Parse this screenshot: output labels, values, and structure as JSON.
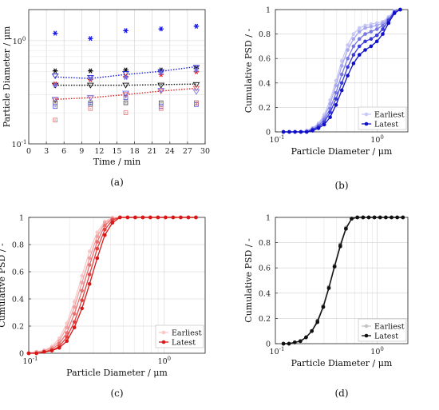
{
  "chart_data": [
    {
      "id": "a",
      "panel_label": "(a)",
      "type": "scatter",
      "xlabel": "Time  / min",
      "ylabel": "Particle Diameter  / μm",
      "xlim": [
        0,
        30
      ],
      "ylim": [
        0.1,
        2
      ],
      "yscale": "log",
      "grid": true,
      "xticks": [
        "0",
        "3",
        "6",
        "9",
        "12",
        "15",
        "18",
        "21",
        "24",
        "27",
        "30"
      ],
      "yticks": [
        "10-1",
        "100"
      ],
      "x": [
        4.5,
        10.5,
        16.5,
        22.5,
        28.5
      ],
      "series": [
        {
          "color": "#1515e0",
          "marker": "*",
          "values": [
            1.18,
            1.05,
            1.25,
            1.3,
            1.38
          ]
        },
        {
          "color": "#111111",
          "marker": "*",
          "values": [
            0.51,
            0.51,
            0.52,
            0.52,
            0.54
          ]
        },
        {
          "color": "#2a2ad0",
          "marker": "triangle-down",
          "values": [
            0.455,
            0.44,
            0.48,
            0.5,
            0.55
          ]
        },
        {
          "color": "#111111",
          "marker": "triangle-down",
          "values": [
            0.37,
            0.37,
            0.37,
            0.37,
            0.375
          ]
        },
        {
          "color": "#e02020",
          "marker": "*",
          "values": [
            0.38,
            0.42,
            0.45,
            0.47,
            0.5
          ]
        },
        {
          "color": "#7070e0",
          "marker": "*",
          "values": [
            0.37,
            0.43,
            0.44,
            0.49,
            0.52
          ]
        },
        {
          "color": "#e86060",
          "marker": "triangle-down",
          "values": [
            0.265,
            0.28,
            0.3,
            0.325,
            0.345
          ]
        },
        {
          "color": "#7a7af0",
          "marker": "triangle-down",
          "values": [
            0.27,
            0.28,
            0.31,
            0.33,
            0.32
          ]
        },
        {
          "color": "#444444",
          "marker": "square",
          "values": [
            0.25,
            0.25,
            0.25,
            0.25,
            0.25
          ]
        },
        {
          "color": "#4a4ad8",
          "marker": "square",
          "values": [
            0.23,
            0.24,
            0.28,
            0.23,
            0.24
          ]
        },
        {
          "color": "#e87070",
          "marker": "square",
          "values": [
            0.17,
            0.22,
            0.2,
            0.22,
            0.25
          ]
        }
      ],
      "fit_lines": [
        {
          "color": "#1a1ad8",
          "values": [
            0.445,
            0.43,
            0.47,
            0.505,
            0.56
          ]
        },
        {
          "color": "#111111",
          "values": [
            0.37,
            0.37,
            0.37,
            0.375,
            0.38
          ]
        },
        {
          "color": "#e02020",
          "values": [
            0.27,
            0.28,
            0.3,
            0.325,
            0.345
          ]
        }
      ]
    },
    {
      "id": "b",
      "panel_label": "(b)",
      "type": "line",
      "xlabel": "Particle Diameter  / μm",
      "ylabel": "Cumulative PSD  / -",
      "xscale": "log",
      "xlim": [
        0.1,
        2
      ],
      "ylim": [
        0,
        1
      ],
      "grid": true,
      "xticks": [
        "10-1",
        "100"
      ],
      "yticks": [
        "0",
        "0.2",
        "0.4",
        "0.6",
        "0.8",
        "1"
      ],
      "legend": {
        "position": "bottom-right",
        "entries": [
          "Earliest",
          "Latest"
        ]
      },
      "x": [
        0.12,
        0.137,
        0.156,
        0.178,
        0.203,
        0.232,
        0.265,
        0.302,
        0.345,
        0.394,
        0.449,
        0.513,
        0.585,
        0.668,
        0.762,
        0.87,
        0.993,
        1.133,
        1.293,
        1.476,
        1.684
      ],
      "series": [
        {
          "color": "#c8c8f4",
          "values": [
            0,
            0,
            0,
            0,
            0.01,
            0.03,
            0.07,
            0.14,
            0.26,
            0.42,
            0.58,
            0.71,
            0.8,
            0.85,
            0.87,
            0.88,
            0.89,
            0.9,
            0.94,
            0.99,
            1
          ]
        },
        {
          "color": "#a8a8f0",
          "values": [
            0,
            0,
            0,
            0,
            0.01,
            0.03,
            0.06,
            0.12,
            0.23,
            0.38,
            0.54,
            0.67,
            0.76,
            0.82,
            0.85,
            0.86,
            0.87,
            0.89,
            0.93,
            0.98,
            1
          ]
        },
        {
          "color": "#7878e4",
          "values": [
            0,
            0,
            0,
            0,
            0,
            0.02,
            0.05,
            0.1,
            0.19,
            0.32,
            0.47,
            0.6,
            0.7,
            0.76,
            0.8,
            0.82,
            0.84,
            0.87,
            0.92,
            0.98,
            1
          ]
        },
        {
          "color": "#3a3ad8",
          "values": [
            0,
            0,
            0,
            0,
            0,
            0.02,
            0.04,
            0.08,
            0.16,
            0.27,
            0.4,
            0.53,
            0.63,
            0.7,
            0.74,
            0.76,
            0.79,
            0.84,
            0.91,
            0.98,
            1
          ]
        },
        {
          "color": "#1010c8",
          "values": [
            0,
            0,
            0,
            0,
            0,
            0.01,
            0.03,
            0.06,
            0.12,
            0.22,
            0.34,
            0.46,
            0.56,
            0.63,
            0.67,
            0.7,
            0.74,
            0.8,
            0.89,
            0.97,
            1
          ]
        }
      ]
    },
    {
      "id": "c",
      "panel_label": "(c)",
      "type": "line",
      "xlabel": "Particle Diameter  / μm",
      "ylabel": "Cumulative PSD  / -",
      "xscale": "log",
      "xlim": [
        0.1,
        2
      ],
      "ylim": [
        0,
        1
      ],
      "grid": true,
      "xticks": [
        "10-1",
        "100"
      ],
      "yticks": [
        "0",
        "0.2",
        "0.4",
        "0.6",
        "0.8",
        "1"
      ],
      "legend": {
        "position": "bottom-right",
        "entries": [
          "Earliest",
          "Latest"
        ]
      },
      "x": [
        0.1,
        0.114,
        0.13,
        0.148,
        0.168,
        0.191,
        0.217,
        0.247,
        0.281,
        0.32,
        0.364,
        0.414,
        0.471,
        0.536,
        0.61,
        0.694,
        0.789,
        0.898,
        1.021,
        1.162,
        1.322,
        1.504,
        1.711
      ],
      "series": [
        {
          "color": "#f8c8c8",
          "values": [
            0,
            0.01,
            0.02,
            0.05,
            0.11,
            0.22,
            0.38,
            0.57,
            0.75,
            0.89,
            0.97,
            1,
            1,
            1,
            1,
            1,
            1,
            1,
            1,
            1,
            1,
            1,
            1
          ]
        },
        {
          "color": "#f0a0a0",
          "values": [
            0,
            0.01,
            0.02,
            0.04,
            0.09,
            0.19,
            0.34,
            0.52,
            0.7,
            0.86,
            0.96,
            0.99,
            1,
            1,
            1,
            1,
            1,
            1,
            1,
            1,
            1,
            1,
            1
          ]
        },
        {
          "color": "#e87070",
          "values": [
            0,
            0,
            0.01,
            0.03,
            0.07,
            0.15,
            0.29,
            0.46,
            0.65,
            0.82,
            0.94,
            0.99,
            1,
            1,
            1,
            1,
            1,
            1,
            1,
            1,
            1,
            1,
            1
          ]
        },
        {
          "color": "#e04040",
          "values": [
            0,
            0,
            0.01,
            0.02,
            0.05,
            0.12,
            0.23,
            0.39,
            0.58,
            0.77,
            0.91,
            0.98,
            1,
            1,
            1,
            1,
            1,
            1,
            1,
            1,
            1,
            1,
            1
          ]
        },
        {
          "color": "#d81818",
          "values": [
            0,
            0,
            0.01,
            0.02,
            0.04,
            0.09,
            0.19,
            0.33,
            0.51,
            0.7,
            0.87,
            0.96,
            1,
            1,
            1,
            1,
            1,
            1,
            1,
            1,
            1,
            1,
            1
          ]
        }
      ]
    },
    {
      "id": "d",
      "panel_label": "(d)",
      "type": "line",
      "xlabel": "Particle Diameter  / μm",
      "ylabel": "Cumulative PSD  / -",
      "xscale": "log",
      "xlim": [
        0.1,
        2
      ],
      "ylim": [
        0,
        1
      ],
      "grid": true,
      "xticks": [
        "10-1",
        "100"
      ],
      "yticks": [
        "0",
        "0.2",
        "0.4",
        "0.6",
        "0.8",
        "1"
      ],
      "legend": {
        "position": "bottom-right",
        "entries": [
          "Earliest",
          "Latest"
        ]
      },
      "x": [
        0.12,
        0.136,
        0.155,
        0.176,
        0.2,
        0.228,
        0.259,
        0.295,
        0.335,
        0.381,
        0.434,
        0.493,
        0.561,
        0.638,
        0.726,
        0.826,
        0.939,
        1.068,
        1.215,
        1.382,
        1.572,
        1.788
      ],
      "series": [
        {
          "color": "#c4c4c4",
          "values": [
            0,
            0,
            0.01,
            0.02,
            0.05,
            0.1,
            0.18,
            0.3,
            0.45,
            0.62,
            0.79,
            0.92,
            0.99,
            1,
            1,
            1,
            1,
            1,
            1,
            1,
            1,
            1
          ]
        },
        {
          "color": "#a0a0a0",
          "values": [
            0,
            0,
            0.01,
            0.02,
            0.05,
            0.1,
            0.18,
            0.3,
            0.45,
            0.62,
            0.78,
            0.92,
            0.99,
            1,
            1,
            1,
            1,
            1,
            1,
            1,
            1,
            1
          ]
        },
        {
          "color": "#787878",
          "values": [
            0,
            0,
            0.01,
            0.02,
            0.05,
            0.1,
            0.18,
            0.29,
            0.44,
            0.61,
            0.78,
            0.91,
            0.99,
            1,
            1,
            1,
            1,
            1,
            1,
            1,
            1,
            1
          ]
        },
        {
          "color": "#404040",
          "values": [
            0,
            0,
            0.01,
            0.02,
            0.05,
            0.1,
            0.18,
            0.29,
            0.44,
            0.61,
            0.78,
            0.91,
            0.99,
            1,
            1,
            1,
            1,
            1,
            1,
            1,
            1,
            1
          ]
        },
        {
          "color": "#111111",
          "values": [
            0,
            0,
            0.01,
            0.02,
            0.05,
            0.1,
            0.17,
            0.29,
            0.44,
            0.61,
            0.77,
            0.91,
            0.99,
            1,
            1,
            1,
            1,
            1,
            1,
            1,
            1,
            1
          ]
        }
      ]
    }
  ]
}
